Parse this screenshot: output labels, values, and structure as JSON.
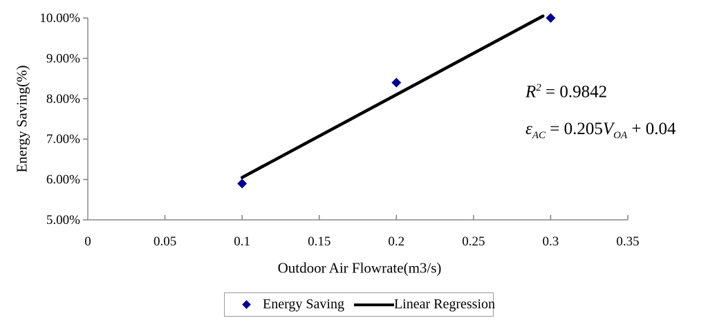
{
  "chart_data": {
    "type": "scatter",
    "title": "",
    "xlabel": "Outdoor Air Flowrate(m3/s)",
    "ylabel": "Energy Saving(%)",
    "xlim": [
      0,
      0.35
    ],
    "ylim": [
      5,
      10
    ],
    "grid": false,
    "legend_position": "bottom",
    "x_ticks": {
      "values": [
        0,
        0.05,
        0.1,
        0.15,
        0.2,
        0.25,
        0.3,
        0.35
      ],
      "labels": [
        "0",
        "0.05",
        "0.1",
        "0.15",
        "0.2",
        "0.25",
        "0.3",
        "0.35"
      ]
    },
    "y_ticks": {
      "values": [
        5,
        6,
        7,
        8,
        9,
        10
      ],
      "labels": [
        "5.00%",
        "6.00%",
        "7.00%",
        "8.00%",
        "9.00%",
        "10.00%"
      ]
    },
    "series": [
      {
        "name": "Energy Saving",
        "type": "scatter",
        "marker": "diamond",
        "color": "#000090",
        "x": [
          0.1,
          0.2,
          0.3
        ],
        "y": [
          5.9,
          8.4,
          10.0
        ]
      },
      {
        "name": "Linear Regression",
        "type": "line",
        "color": "#000000",
        "slope_pct_per_unit": 20.5,
        "intercept_pct": 4.0,
        "x_start": 0.1,
        "x_end": 0.295
      }
    ],
    "annotation_text": [
      "R2 = 0.9842",
      "εAC = 0.205VOA + 0.04"
    ]
  },
  "annotation": {
    "r2_var": "R",
    "r2_sup": "2",
    "r2_rest": " = 0.9842",
    "eps": "ε",
    "eps_sub": "AC",
    "mid": " = 0.205",
    "v_var": "V",
    "v_sub": "OA",
    "tail": " + 0.04"
  },
  "legend": [
    {
      "label": "Energy Saving",
      "marker": "diamond",
      "color": "#000090"
    },
    {
      "label": "Linear Regression",
      "marker": "line",
      "color": "#000000"
    }
  ],
  "colors": {
    "marker": "#000090",
    "regression_line": "#000000",
    "axis": "#a6a6a6",
    "tick": "#808080",
    "text": "#000000",
    "background": "#ffffff"
  }
}
